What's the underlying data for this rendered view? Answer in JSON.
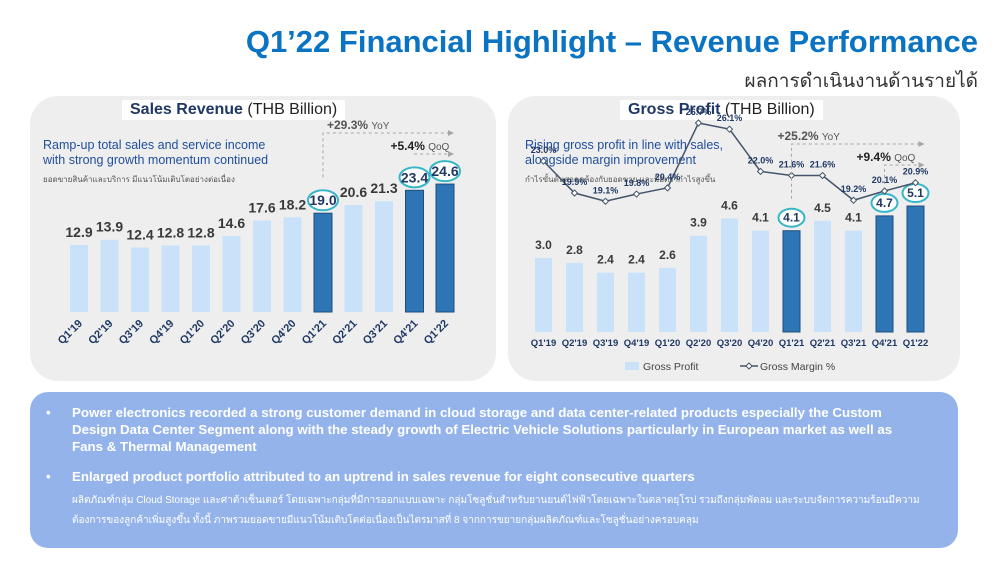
{
  "header": {
    "title": "Q1’22 Financial Highlight – Revenue Performance",
    "subtitle_thai": "ผลการดำเนินงานด้านรายได้"
  },
  "colors": {
    "light_bar": "#c9e2fa",
    "dark_bar": "#2e75b6",
    "highlight_ring": "#37b6c7",
    "title_blue": "#0a73c2",
    "margin_line": "#44546a",
    "bullets_bg": "#94b3ea"
  },
  "chart_data": [
    {
      "type": "bar",
      "title": "Sales Revenue",
      "unit": "(THB Billion)",
      "description": "Ramp-up total sales and service income with strong growth momentum continued",
      "description_line1": "Ramp-up total sales and service income",
      "description_line2": "with strong growth momentum continued",
      "description_thai": "ยอดขายสินค้าและบริการ มีแนวโน้มเติบโตอย่างต่อเนื่อง",
      "categories": [
        "Q1'19",
        "Q2'19",
        "Q3'19",
        "Q4'19",
        "Q1'20",
        "Q2'20",
        "Q3'20",
        "Q4'20",
        "Q1'21",
        "Q2'21",
        "Q3'21",
        "Q4'21",
        "Q1'22"
      ],
      "values": [
        12.9,
        13.9,
        12.4,
        12.8,
        12.8,
        14.6,
        17.6,
        18.2,
        19.0,
        20.6,
        21.3,
        23.4,
        24.6
      ],
      "value_labels": [
        "12.9",
        "13.9",
        "12.4",
        "12.8",
        "12.8",
        "14.6",
        "17.6",
        "18.2",
        "19.0",
        "20.6",
        "21.3",
        "23.4",
        "24.6"
      ],
      "highlighted": [
        "Q1'21",
        "Q4'21",
        "Q1'22"
      ],
      "yoy_label": "+29.3% YoY",
      "yoy_value": "+29.3%",
      "yoy_suffix": "YoY",
      "qoq_label": "+5.4% QoQ",
      "qoq_value": "+5.4%",
      "qoq_suffix": "QoQ",
      "ylim": [
        0,
        26
      ]
    },
    {
      "type": "bar",
      "title": "Gross Profit",
      "unit": "(THB Billion)",
      "description": "Rising gross profit in line with sales, alongside margin improvement",
      "description_line1": "Rising gross profit in line with sales,",
      "description_line2": "alongside margin improvement",
      "description_thai": "กำไรขั้นต้นสอดคล้องกับยอดขาย และมีอัตรากำไรสูงขึ้น",
      "categories": [
        "Q1'19",
        "Q2'19",
        "Q3'19",
        "Q4'19",
        "Q1'20",
        "Q2'20",
        "Q3'20",
        "Q4'20",
        "Q1'21",
        "Q2'21",
        "Q3'21",
        "Q4'21",
        "Q1'22"
      ],
      "series": [
        {
          "name": "Gross Profit",
          "values": [
            3.0,
            2.8,
            2.4,
            2.4,
            2.6,
            3.9,
            4.6,
            4.1,
            4.1,
            4.5,
            4.1,
            4.7,
            5.1
          ],
          "value_labels": [
            "3.0",
            "2.8",
            "2.4",
            "2.4",
            "2.6",
            "3.9",
            "4.6",
            "4.1",
            "4.1",
            "4.5",
            "4.1",
            "4.7",
            "5.1"
          ]
        },
        {
          "name": "Gross Margin %",
          "values": [
            23.0,
            19.9,
            19.1,
            19.8,
            20.4,
            26.7,
            26.1,
            22.0,
            21.6,
            21.6,
            19.2,
            20.1,
            20.9
          ],
          "value_labels": [
            "23.0%",
            "19.9%",
            "19.1%",
            "19.8%",
            "20.4%",
            "26.7%",
            "26.1%",
            "22.0%",
            "21.6%",
            "21.6%",
            "19.2%",
            "20.1%",
            "20.9%"
          ]
        }
      ],
      "highlighted": [
        "Q1'21",
        "Q4'21",
        "Q1'22"
      ],
      "yoy_label": "+25.2% YoY",
      "yoy_value": "+25.2%",
      "yoy_suffix": "YoY",
      "qoq_label": "+9.4% QoQ",
      "qoq_value": "+9.4%",
      "qoq_suffix": "QoQ",
      "legend": [
        "Gross Profit",
        "Gross Margin %"
      ],
      "legend_position": "bottom"
    }
  ],
  "bullets": {
    "item1": "Power electronics recorded a strong customer demand in cloud storage and data center-related products especially the Custom Design Data Center Segment along with the steady growth of Electric Vehicle Solutions particularly in European market as well as Fans & Thermal Management",
    "item2": "Enlarged product portfolio attributed to an uptrend in sales revenue for eight consecutive quarters",
    "thai_note": "ผลิตภัณฑ์กลุ่ม Cloud Storage และศาต้าเซ็นเตอร์ โดยเฉพาะกลุ่มที่มีการออกแบบเฉพาะ กลุ่มโซลูชั่นสำหรับยานยนต์ไฟฟ้าโดยเฉพาะในตลาดยุโรป รวมถึงกลุ่มพัดลม และระบบจัดการความร้อนมีความต้องการของลูกค้าเพิ่มสูงขึ้น ทั้งนี้ ภาพรวมยอดขายมีแนวโน้มเติบโตต่อเนื่องเป็นไตรมาสที่ 8 จากการขยายกลุ่มผลิตภัณฑ์และโซลูชั่นอย่างครอบคลุม",
    "bullet_symbol": "•"
  }
}
